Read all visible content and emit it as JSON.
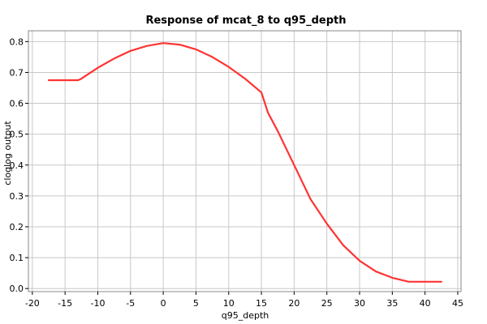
{
  "chart_data": {
    "type": "line",
    "title": "Response of mcat_8 to q95_depth",
    "xlabel": "q95_depth",
    "ylabel": "cloglog output",
    "xlim": [
      -20.6,
      45.5
    ],
    "ylim": [
      -0.01,
      0.835
    ],
    "xticks": [
      -20,
      -15,
      -10,
      -5,
      0,
      5,
      10,
      15,
      20,
      25,
      30,
      35,
      40,
      45
    ],
    "yticks": [
      0.0,
      0.1,
      0.2,
      0.3,
      0.4,
      0.5,
      0.6,
      0.7,
      0.8
    ],
    "xtick_labels": [
      "-20",
      "-15",
      "-10",
      "-5",
      "0",
      "5",
      "10",
      "15",
      "20",
      "25",
      "30",
      "35",
      "40",
      "45"
    ],
    "ytick_labels": [
      "0.0",
      "0.1",
      "0.2",
      "0.3",
      "0.4",
      "0.5",
      "0.6",
      "0.7",
      "0.8"
    ],
    "grid": true,
    "series": [
      {
        "color": "#ff3333",
        "x": [
          -17.5,
          -13.0,
          -12.5,
          -10.0,
          -7.5,
          -5.0,
          -2.5,
          0.0,
          2.5,
          5.0,
          7.5,
          10.0,
          12.5,
          15.0,
          16.0,
          17.5,
          20.0,
          22.5,
          25.0,
          27.5,
          30.0,
          32.5,
          35.0,
          37.5,
          40.0,
          42.5
        ],
        "y": [
          0.675,
          0.675,
          0.68,
          0.715,
          0.745,
          0.77,
          0.786,
          0.795,
          0.79,
          0.775,
          0.75,
          0.718,
          0.68,
          0.635,
          0.57,
          0.51,
          0.4,
          0.29,
          0.21,
          0.14,
          0.09,
          0.055,
          0.035,
          0.022,
          0.022,
          0.022
        ]
      }
    ]
  }
}
